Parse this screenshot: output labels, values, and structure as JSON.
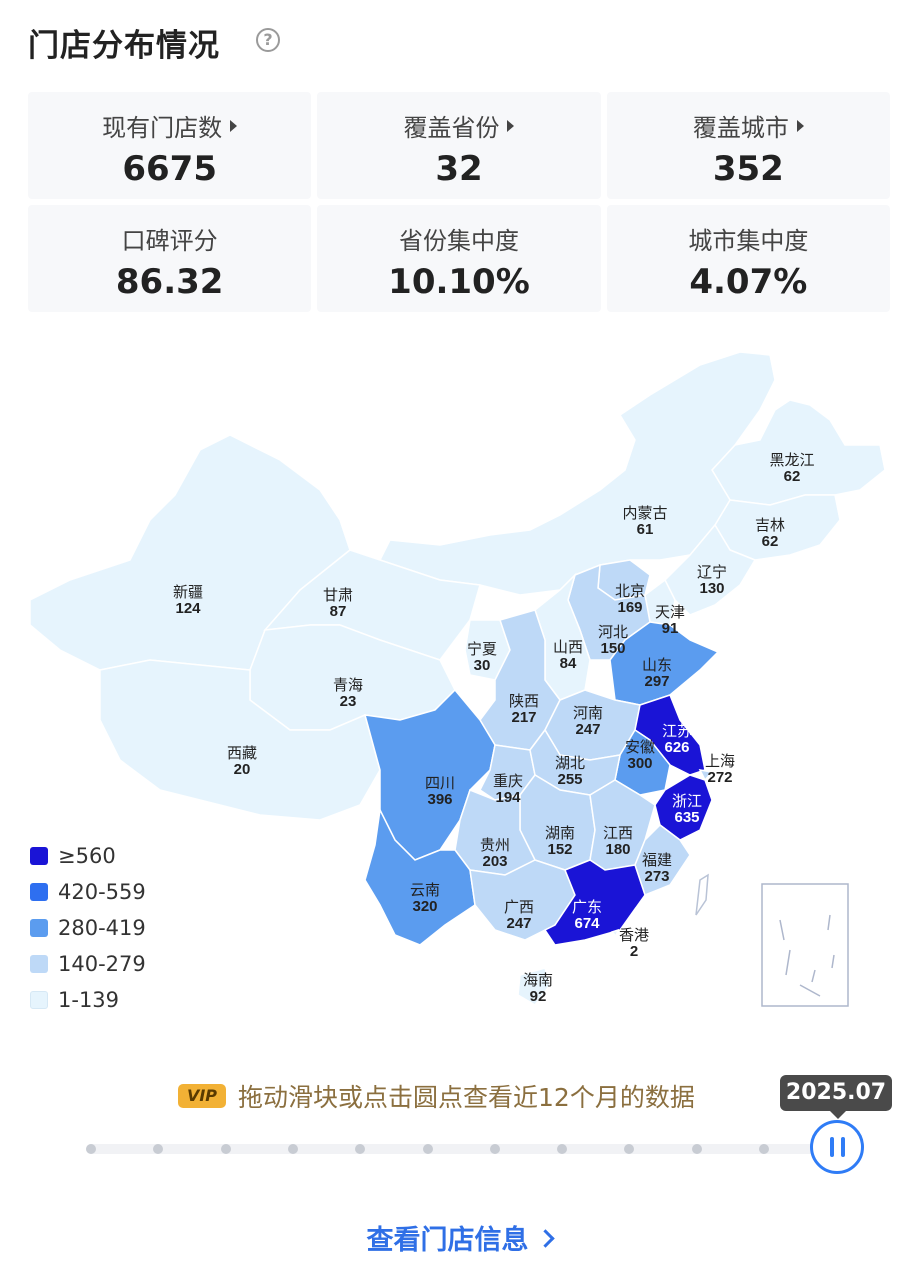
{
  "header": {
    "title": "门店分布情况",
    "help_icon": "question-circle-icon"
  },
  "stats": [
    {
      "label": "现有门店数",
      "value": "6675",
      "has_arrow": true
    },
    {
      "label": "覆盖省份",
      "value": "32",
      "has_arrow": true
    },
    {
      "label": "覆盖城市",
      "value": "352",
      "has_arrow": true
    },
    {
      "label": "口碑评分",
      "value": "86.32",
      "has_arrow": false
    },
    {
      "label": "省份集中度",
      "value": "10.10%",
      "has_arrow": false
    },
    {
      "label": "城市集中度",
      "value": "4.07%",
      "has_arrow": false
    }
  ],
  "colors": {
    "tier1": "#1a14d6",
    "tier2": "#2e6ff0",
    "tier3": "#5b9cef",
    "tier4": "#bed9f7",
    "tier5": "#e6f4fd"
  },
  "chart_data": {
    "type": "choropleth-map",
    "legend": [
      {
        "label": "≥560",
        "color": "#1a14d6"
      },
      {
        "label": "420-559",
        "color": "#2e6ff0"
      },
      {
        "label": "280-419",
        "color": "#5b9cef"
      },
      {
        "label": "140-279",
        "color": "#bed9f7"
      },
      {
        "label": "1-139",
        "color": "#e6f4fd"
      }
    ],
    "regions": [
      {
        "name": "黑龙江",
        "value": "62"
      },
      {
        "name": "吉林",
        "value": "62"
      },
      {
        "name": "内蒙古",
        "value": "61"
      },
      {
        "name": "辽宁",
        "value": "130"
      },
      {
        "name": "北京",
        "value": "169"
      },
      {
        "name": "天津",
        "value": "91"
      },
      {
        "name": "河北",
        "value": "150"
      },
      {
        "name": "山西",
        "value": "84"
      },
      {
        "name": "山东",
        "value": "297"
      },
      {
        "name": "新疆",
        "value": "124"
      },
      {
        "name": "甘肃",
        "value": "87"
      },
      {
        "name": "宁夏",
        "value": "30"
      },
      {
        "name": "青海",
        "value": "23"
      },
      {
        "name": "陕西",
        "value": "217"
      },
      {
        "name": "河南",
        "value": "247"
      },
      {
        "name": "江苏",
        "value": "626"
      },
      {
        "name": "安徽",
        "value": "300"
      },
      {
        "name": "上海",
        "value": "272"
      },
      {
        "name": "西藏",
        "value": "20"
      },
      {
        "name": "四川",
        "value": "396"
      },
      {
        "name": "重庆",
        "value": "194"
      },
      {
        "name": "湖北",
        "value": "255"
      },
      {
        "name": "浙江",
        "value": "635"
      },
      {
        "name": "湖南",
        "value": "152"
      },
      {
        "name": "江西",
        "value": "180"
      },
      {
        "name": "贵州",
        "value": "203"
      },
      {
        "name": "福建",
        "value": "273"
      },
      {
        "name": "云南",
        "value": "320"
      },
      {
        "name": "广西",
        "value": "247"
      },
      {
        "name": "广东",
        "value": "674"
      },
      {
        "name": "香港",
        "value": "2"
      },
      {
        "name": "海南",
        "value": "92"
      }
    ]
  },
  "timeline": {
    "vip_badge": "VIP",
    "hint": "拖动滑块或点击圆点查看近12个月的数据",
    "current": "2025.07",
    "dots": 12
  },
  "footer": {
    "link_label": "查看门店信息"
  }
}
